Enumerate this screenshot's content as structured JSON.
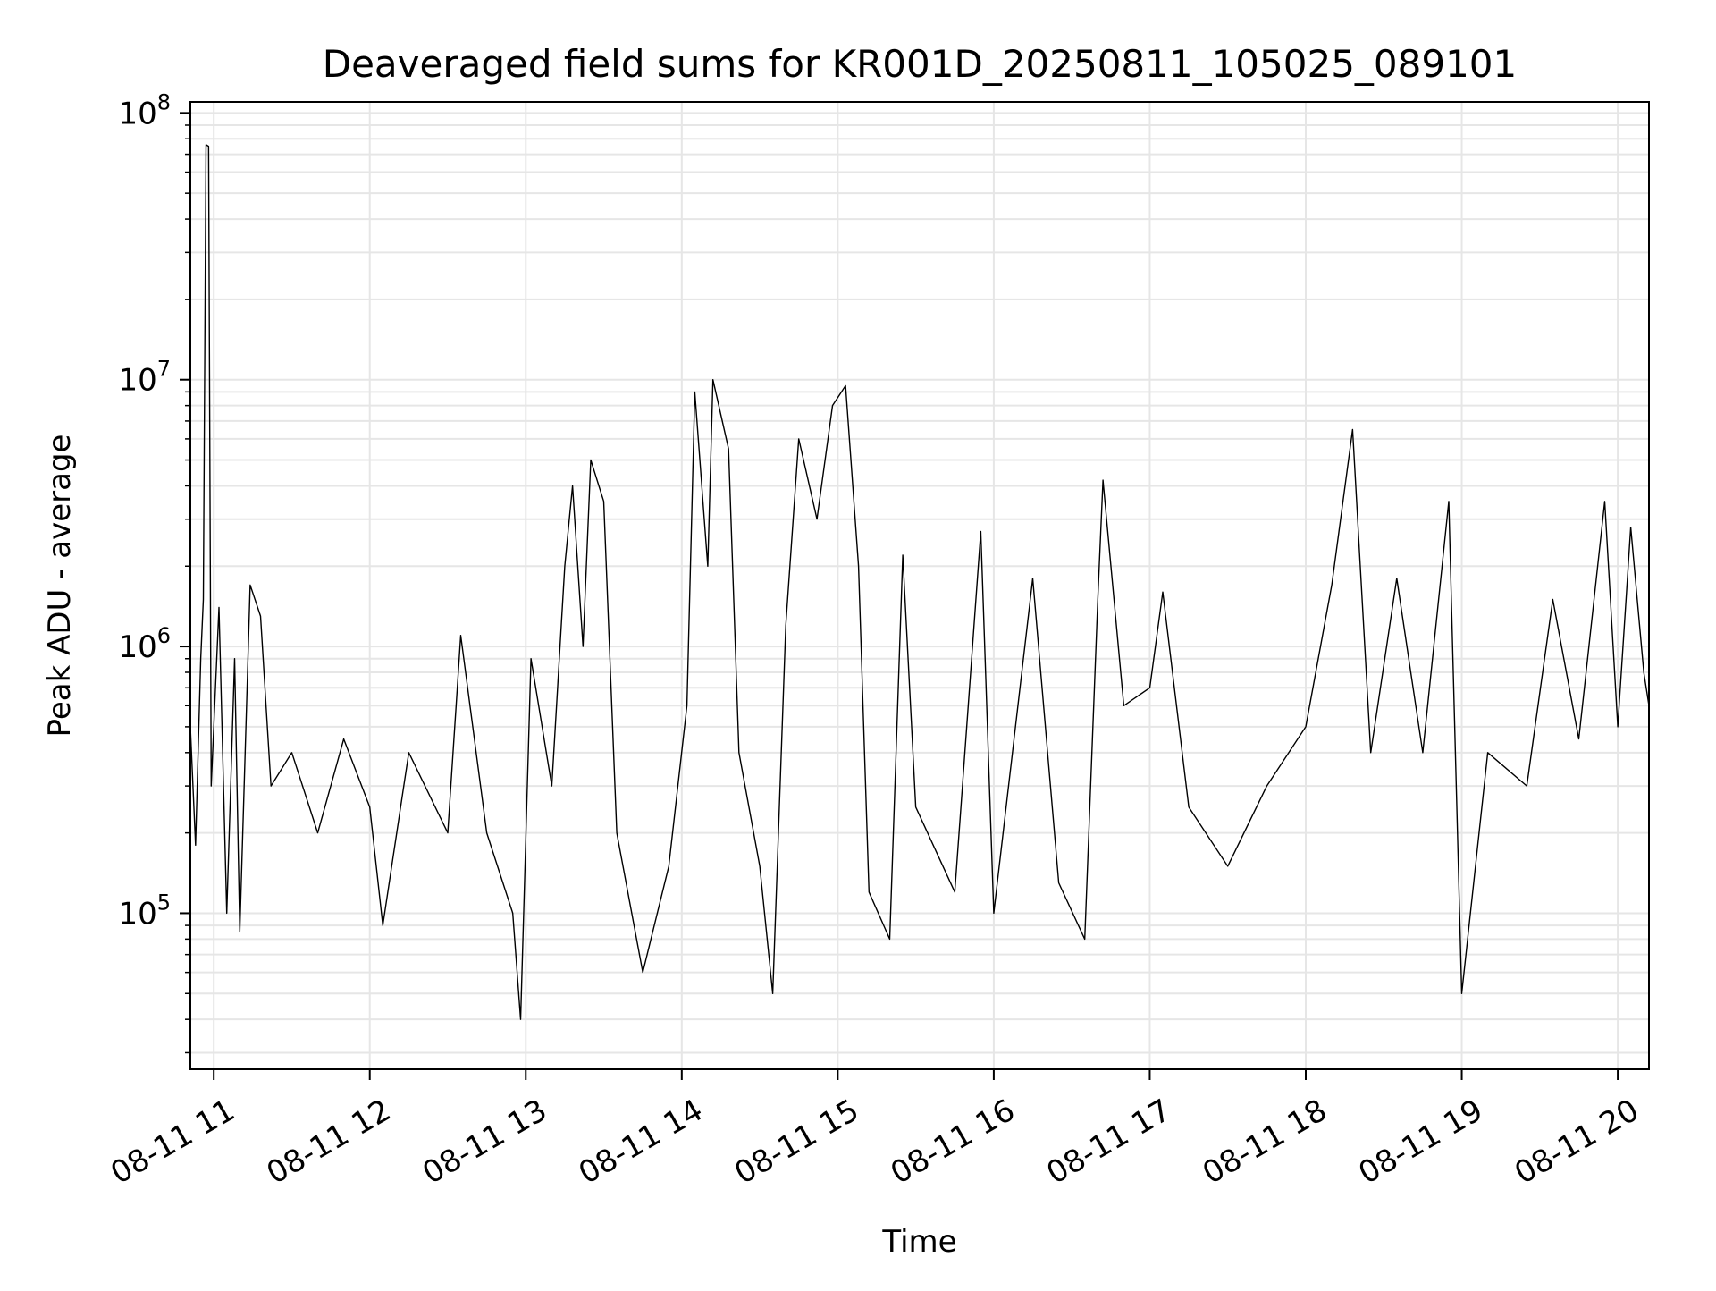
{
  "chart_data": {
    "type": "line",
    "title": "Deaveraged field sums for KR001D_20250811_105025_089101",
    "xlabel": "Time",
    "ylabel": "Peak ADU - average",
    "yscale": "log",
    "ylim": [
      26000,
      110000000
    ],
    "xlim": [
      "2025-08-11 10:51",
      "2025-08-11 20:12"
    ],
    "grid": true,
    "line_color": "#000000",
    "x_ticks": [
      {
        "value": "2025-08-11 11:00",
        "label": "08-11 11"
      },
      {
        "value": "2025-08-11 12:00",
        "label": "08-11 12"
      },
      {
        "value": "2025-08-11 13:00",
        "label": "08-11 13"
      },
      {
        "value": "2025-08-11 14:00",
        "label": "08-11 14"
      },
      {
        "value": "2025-08-11 15:00",
        "label": "08-11 15"
      },
      {
        "value": "2025-08-11 16:00",
        "label": "08-11 16"
      },
      {
        "value": "2025-08-11 17:00",
        "label": "08-11 17"
      },
      {
        "value": "2025-08-11 18:00",
        "label": "08-11 18"
      },
      {
        "value": "2025-08-11 19:00",
        "label": "08-11 19"
      },
      {
        "value": "2025-08-11 20:00",
        "label": "08-11 20"
      }
    ],
    "y_ticks": [
      {
        "value": 100000,
        "base": "10",
        "exp": "5"
      },
      {
        "value": 1000000,
        "base": "10",
        "exp": "6"
      },
      {
        "value": 10000000,
        "base": "10",
        "exp": "7"
      },
      {
        "value": 100000000,
        "base": "10",
        "exp": "8"
      }
    ],
    "series": [
      {
        "points": [
          [
            "2025-08-11 10:51",
            500000
          ],
          [
            "2025-08-11 10:53",
            180000
          ],
          [
            "2025-08-11 10:55",
            900000
          ],
          [
            "2025-08-11 10:56",
            1500000
          ],
          [
            "2025-08-11 10:57",
            76000000
          ],
          [
            "2025-08-11 10:58",
            75000000
          ],
          [
            "2025-08-11 10:59",
            300000
          ],
          [
            "2025-08-11 11:02",
            1400000
          ],
          [
            "2025-08-11 11:05",
            100000
          ],
          [
            "2025-08-11 11:08",
            900000
          ],
          [
            "2025-08-11 11:10",
            85000
          ],
          [
            "2025-08-11 11:14",
            1700000
          ],
          [
            "2025-08-11 11:18",
            1300000
          ],
          [
            "2025-08-11 11:22",
            300000
          ],
          [
            "2025-08-11 11:30",
            400000
          ],
          [
            "2025-08-11 11:40",
            200000
          ],
          [
            "2025-08-11 11:50",
            450000
          ],
          [
            "2025-08-11 12:00",
            250000
          ],
          [
            "2025-08-11 12:05",
            90000
          ],
          [
            "2025-08-11 12:15",
            400000
          ],
          [
            "2025-08-11 12:30",
            200000
          ],
          [
            "2025-08-11 12:35",
            1100000
          ],
          [
            "2025-08-11 12:45",
            200000
          ],
          [
            "2025-08-11 12:55",
            100000
          ],
          [
            "2025-08-11 12:58",
            40000
          ],
          [
            "2025-08-11 13:02",
            900000
          ],
          [
            "2025-08-11 13:10",
            300000
          ],
          [
            "2025-08-11 13:15",
            2000000
          ],
          [
            "2025-08-11 13:18",
            4000000
          ],
          [
            "2025-08-11 13:22",
            1000000
          ],
          [
            "2025-08-11 13:25",
            5000000
          ],
          [
            "2025-08-11 13:30",
            3500000
          ],
          [
            "2025-08-11 13:35",
            200000
          ],
          [
            "2025-08-11 13:45",
            60000
          ],
          [
            "2025-08-11 13:55",
            150000
          ],
          [
            "2025-08-11 14:02",
            600000
          ],
          [
            "2025-08-11 14:05",
            9000000
          ],
          [
            "2025-08-11 14:10",
            2000000
          ],
          [
            "2025-08-11 14:12",
            10000000
          ],
          [
            "2025-08-11 14:18",
            5500000
          ],
          [
            "2025-08-11 14:22",
            400000
          ],
          [
            "2025-08-11 14:30",
            150000
          ],
          [
            "2025-08-11 14:35",
            50000
          ],
          [
            "2025-08-11 14:40",
            1200000
          ],
          [
            "2025-08-11 14:45",
            6000000
          ],
          [
            "2025-08-11 14:52",
            3000000
          ],
          [
            "2025-08-11 14:58",
            8000000
          ],
          [
            "2025-08-11 15:03",
            9500000
          ],
          [
            "2025-08-11 15:08",
            2000000
          ],
          [
            "2025-08-11 15:12",
            120000
          ],
          [
            "2025-08-11 15:20",
            80000
          ],
          [
            "2025-08-11 15:25",
            2200000
          ],
          [
            "2025-08-11 15:30",
            250000
          ],
          [
            "2025-08-11 15:45",
            120000
          ],
          [
            "2025-08-11 15:55",
            2700000
          ],
          [
            "2025-08-11 16:00",
            100000
          ],
          [
            "2025-08-11 16:15",
            1800000
          ],
          [
            "2025-08-11 16:25",
            130000
          ],
          [
            "2025-08-11 16:35",
            80000
          ],
          [
            "2025-08-11 16:40",
            1500000
          ],
          [
            "2025-08-11 16:42",
            4200000
          ],
          [
            "2025-08-11 16:50",
            600000
          ],
          [
            "2025-08-11 17:00",
            700000
          ],
          [
            "2025-08-11 17:05",
            1600000
          ],
          [
            "2025-08-11 17:15",
            250000
          ],
          [
            "2025-08-11 17:30",
            150000
          ],
          [
            "2025-08-11 17:45",
            300000
          ],
          [
            "2025-08-11 18:00",
            500000
          ],
          [
            "2025-08-11 18:10",
            1700000
          ],
          [
            "2025-08-11 18:18",
            6500000
          ],
          [
            "2025-08-11 18:25",
            400000
          ],
          [
            "2025-08-11 18:35",
            1800000
          ],
          [
            "2025-08-11 18:45",
            400000
          ],
          [
            "2025-08-11 18:55",
            3500000
          ],
          [
            "2025-08-11 19:00",
            50000
          ],
          [
            "2025-08-11 19:10",
            400000
          ],
          [
            "2025-08-11 19:25",
            300000
          ],
          [
            "2025-08-11 19:35",
            1500000
          ],
          [
            "2025-08-11 19:45",
            450000
          ],
          [
            "2025-08-11 19:55",
            3500000
          ],
          [
            "2025-08-11 20:00",
            500000
          ],
          [
            "2025-08-11 20:05",
            2800000
          ],
          [
            "2025-08-11 20:10",
            800000
          ],
          [
            "2025-08-11 20:12",
            600000
          ]
        ]
      }
    ]
  }
}
